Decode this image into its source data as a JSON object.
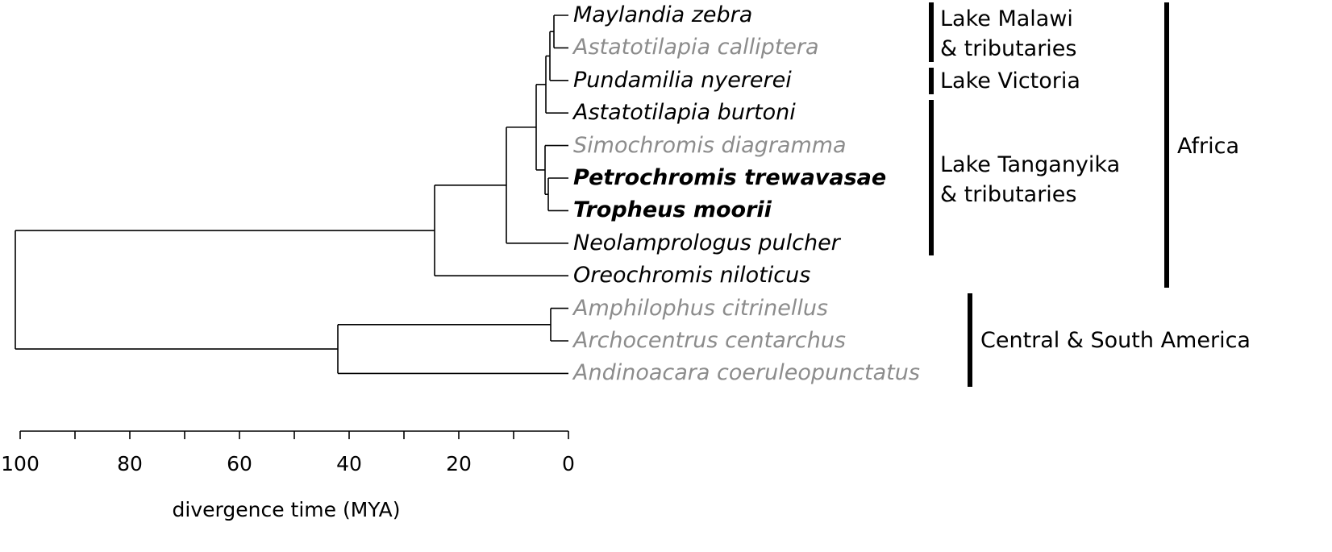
{
  "colors": {
    "ink": "#000000",
    "muted": "#8c8c8c"
  },
  "taxa": [
    {
      "name": "Maylandia zebra",
      "color": "#000000",
      "bold": false
    },
    {
      "name": "Astatotilapia calliptera",
      "color": "#8c8c8c",
      "bold": false
    },
    {
      "name": "Pundamilia nyererei",
      "color": "#000000",
      "bold": false
    },
    {
      "name": "Astatotilapia burtoni",
      "color": "#000000",
      "bold": false
    },
    {
      "name": "Simochromis diagramma",
      "color": "#8c8c8c",
      "bold": false
    },
    {
      "name": "Petrochromis trewavasae",
      "color": "#000000",
      "bold": true
    },
    {
      "name": "Tropheus moorii",
      "color": "#000000",
      "bold": true
    },
    {
      "name": "Neolamprologus pulcher",
      "color": "#000000",
      "bold": false
    },
    {
      "name": "Oreochromis niloticus",
      "color": "#000000",
      "bold": false
    },
    {
      "name": "Amphilophus citrinellus",
      "color": "#8c8c8c",
      "bold": false
    },
    {
      "name": "Archocentrus centarchus",
      "color": "#8c8c8c",
      "bold": false
    },
    {
      "name": "Andinoacara coeruleopunctatus",
      "color": "#8c8c8c",
      "bold": false
    }
  ],
  "groups": [
    {
      "label": "Lake Malawi\n& tributaries"
    },
    {
      "label": "Lake Victoria"
    },
    {
      "label": "Lake Tanganyika\n& tributaries"
    },
    {
      "label": "Central & South America"
    },
    {
      "label": "Africa"
    }
  ],
  "axis": {
    "title": "divergence time (MYA)",
    "range": [
      100,
      0
    ],
    "major_ticks": [
      "100",
      "80",
      "60",
      "40",
      "20",
      "0"
    ],
    "minor_ticks": [
      90,
      70,
      50,
      30,
      10
    ]
  }
}
